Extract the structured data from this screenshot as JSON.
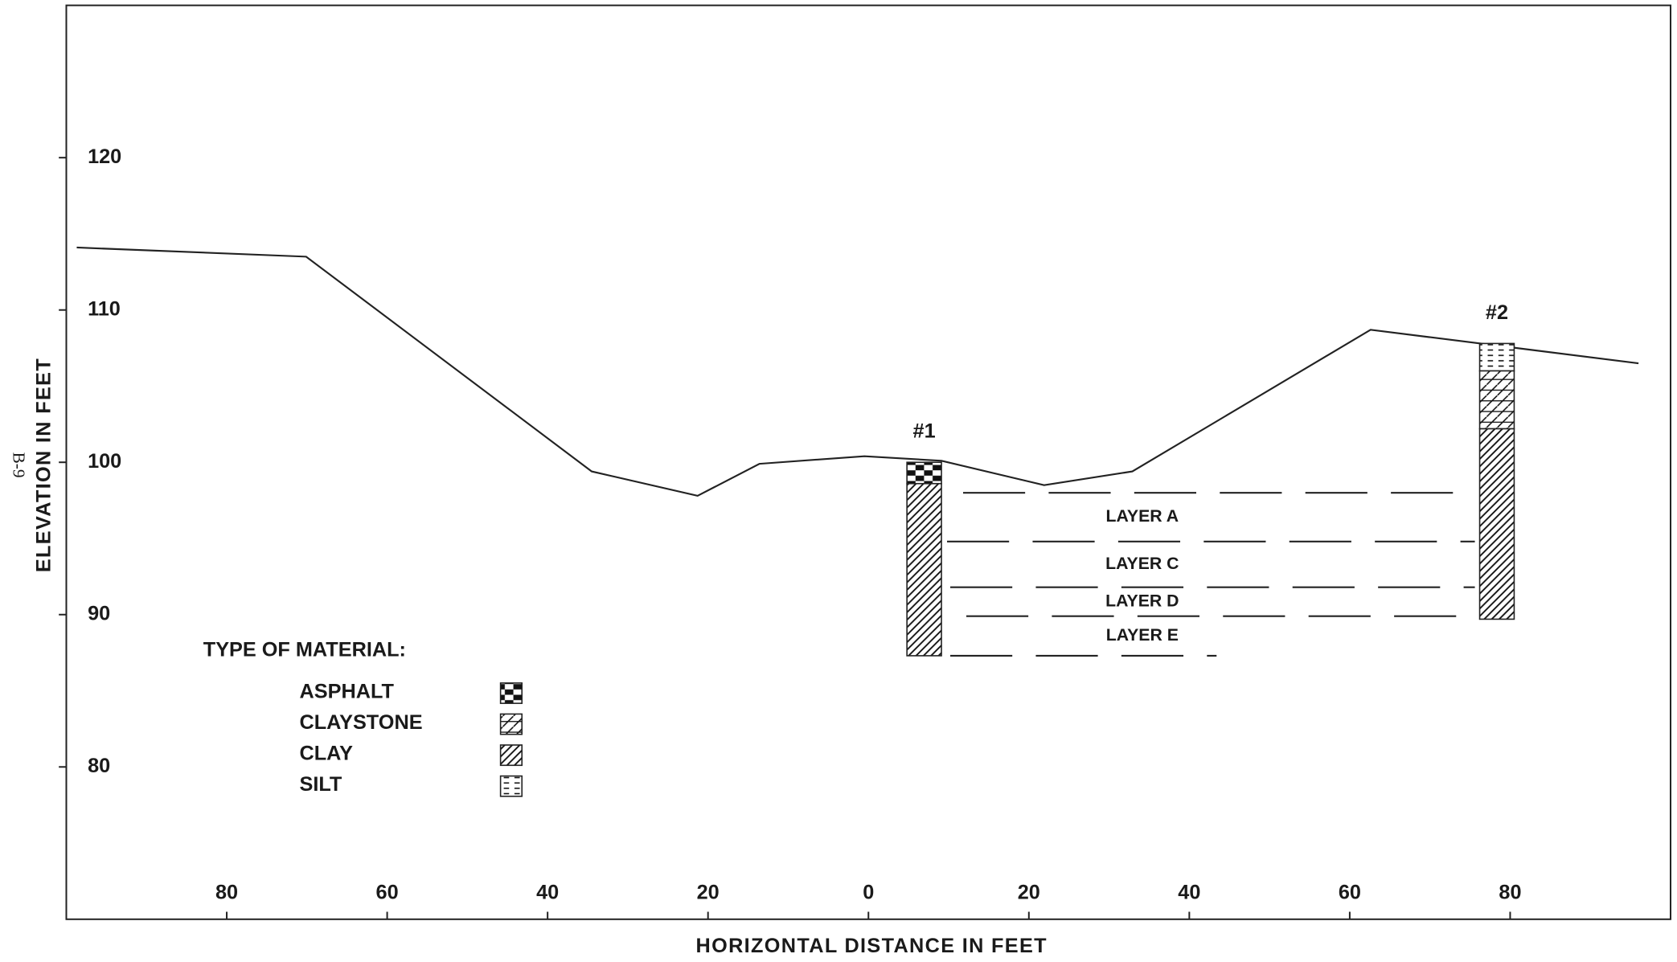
{
  "page_label": "B-9",
  "chart_data": {
    "type": "cross-section",
    "x_label": "HORIZONTAL DISTANCE IN FEET",
    "y_label": "ELEVATION IN FEET",
    "xlim": [
      -100,
      100
    ],
    "ylim": [
      70,
      130
    ],
    "xticks": [
      {
        "value": -80,
        "label": "80"
      },
      {
        "value": -60,
        "label": "60"
      },
      {
        "value": -40,
        "label": "40"
      },
      {
        "value": -20,
        "label": "20"
      },
      0,
      20,
      40,
      60,
      80
    ],
    "yticks": [
      80,
      90,
      100,
      110,
      120
    ],
    "profile": {
      "x": [
        -98.7,
        -70.1,
        -34.5,
        -21.3,
        -13.6,
        -0.5,
        9.1,
        21.9,
        32.9,
        62.6,
        96.0
      ],
      "y": [
        114.1,
        113.5,
        99.4,
        97.8,
        99.9,
        100.4,
        100.1,
        98.5,
        99.4,
        108.7,
        106.5
      ]
    },
    "boreholes": [
      {
        "label": "#1",
        "x": [
          4.8,
          9.1
        ],
        "segments": [
          {
            "material": "ASPHALT",
            "top": 100.0,
            "bottom": 98.6
          },
          {
            "material": "CLAY",
            "top": 98.6,
            "bottom": 87.3
          }
        ]
      },
      {
        "label": "#2",
        "x": [
          76.2,
          80.5
        ],
        "segments": [
          {
            "material": "SILT",
            "top": 107.8,
            "bottom": 106.0
          },
          {
            "material": "CLAYSTONE",
            "top": 106.0,
            "bottom": 102.2
          },
          {
            "material": "CLAY",
            "top": 102.2,
            "bottom": 89.7
          }
        ]
      }
    ],
    "layer_lines": [
      {
        "y": 98.0,
        "x": [
          11.8,
          75.6
        ]
      },
      {
        "y": 94.8,
        "x": [
          9.8,
          75.6
        ]
      },
      {
        "y": 91.8,
        "x": [
          10.2,
          75.6
        ]
      },
      {
        "y": 89.9,
        "x": [
          12.2,
          75.6
        ]
      },
      {
        "y": 87.3,
        "x": [
          10.2,
          43.4
        ]
      }
    ],
    "layers": [
      "LAYER A",
      "LAYER C",
      "LAYER D",
      "LAYER E"
    ],
    "legend": {
      "title": "TYPE OF MATERIAL:",
      "items": [
        "ASPHALT",
        "CLAYSTONE",
        "CLAY",
        "SILT"
      ]
    }
  }
}
